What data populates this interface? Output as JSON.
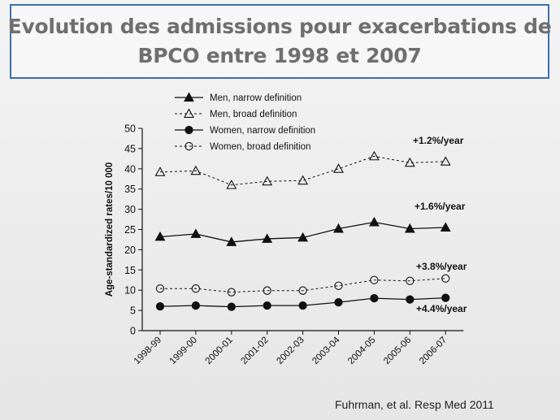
{
  "slide": {
    "title_lines": [
      "Evolution des admissions pour exacerbations de",
      "BPCO entre 1998 et 2007"
    ],
    "citation": "Fuhrman, et al. Resp Med 2011",
    "accent_color": "#3a6fb0"
  },
  "chart_data": {
    "type": "line",
    "title": "",
    "xlabel": "",
    "ylabel": "Age-standardized rates/10 000",
    "categories": [
      "1998-99",
      "1999-00",
      "2000-01",
      "2001-02",
      "2002-03",
      "2003-04",
      "2004-05",
      "2005-06",
      "2006-07"
    ],
    "ylim": [
      0,
      50
    ],
    "yticks": [
      0,
      5,
      10,
      15,
      20,
      25,
      30,
      35,
      40,
      45,
      50
    ],
    "grid": false,
    "legend_position": "top-left",
    "series": [
      {
        "name": "Men, narrow definition",
        "marker": "filled-triangle",
        "line": "solid",
        "values": [
          23.2,
          23.9,
          21.9,
          22.7,
          23.0,
          25.2,
          26.8,
          25.2,
          25.5
        ]
      },
      {
        "name": "Men, broad definition",
        "marker": "open-triangle",
        "line": "dashed",
        "values": [
          39.2,
          39.5,
          36.0,
          36.9,
          37.1,
          40.0,
          43.1,
          41.5,
          41.8
        ]
      },
      {
        "name": "Women, narrow definition",
        "marker": "filled-circle",
        "line": "solid",
        "values": [
          6.0,
          6.2,
          5.9,
          6.2,
          6.2,
          7.0,
          8.0,
          7.7,
          8.1
        ]
      },
      {
        "name": "Women, broad definition",
        "marker": "open-circle",
        "line": "dashed",
        "values": [
          10.4,
          10.4,
          9.5,
          9.9,
          9.9,
          11.1,
          12.5,
          12.3,
          12.9
        ]
      }
    ],
    "annotations": [
      {
        "text": "+1.2%/year",
        "series": 1
      },
      {
        "text": "+1.6%/year",
        "series": 0
      },
      {
        "text": "+3.8%/year",
        "series": 3
      },
      {
        "text": "+4.4%/year",
        "series": 2
      }
    ]
  }
}
